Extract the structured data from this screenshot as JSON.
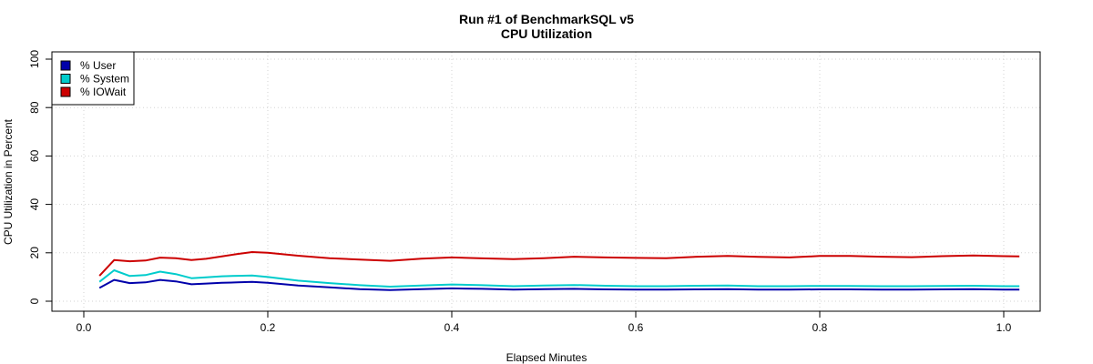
{
  "chart_data": {
    "type": "line",
    "title": "Run #1 of BenchmarkSQL v5",
    "subtitle": "CPU Utilization",
    "xlabel": "Elapsed Minutes",
    "ylabel": "CPU Utilization in Percent",
    "xlim": [
      0,
      1.02
    ],
    "ylim": [
      0,
      100
    ],
    "xticks": [
      "0.0",
      "0.2",
      "0.4",
      "0.6",
      "0.8",
      "1.0"
    ],
    "yticks": [
      "0",
      "20",
      "40",
      "60",
      "80",
      "100"
    ],
    "grid": true,
    "legend_position": "top-left",
    "x": [
      0.017,
      0.033,
      0.05,
      0.067,
      0.083,
      0.1,
      0.117,
      0.133,
      0.15,
      0.167,
      0.183,
      0.2,
      0.233,
      0.267,
      0.3,
      0.333,
      0.367,
      0.4,
      0.433,
      0.467,
      0.5,
      0.533,
      0.567,
      0.6,
      0.633,
      0.667,
      0.7,
      0.733,
      0.767,
      0.8,
      0.833,
      0.867,
      0.9,
      0.933,
      0.967,
      1.0,
      1.017
    ],
    "series": [
      {
        "name": "% User",
        "color": "#0000aa",
        "values": [
          5.5,
          8.8,
          7.5,
          7.8,
          8.8,
          8.2,
          7.0,
          7.3,
          7.6,
          7.8,
          8.0,
          7.6,
          6.5,
          5.7,
          5.0,
          4.6,
          5.0,
          5.3,
          5.1,
          4.8,
          5.0,
          5.1,
          4.9,
          4.8,
          4.8,
          4.9,
          5.0,
          4.8,
          4.8,
          4.9,
          4.9,
          4.8,
          4.8,
          4.9,
          5.0,
          4.8,
          4.8
        ]
      },
      {
        "name": "% System",
        "color": "#00cccc",
        "values": [
          8.0,
          12.8,
          10.4,
          10.8,
          12.2,
          11.2,
          9.5,
          9.9,
          10.3,
          10.5,
          10.6,
          10.0,
          8.5,
          7.5,
          6.6,
          6.0,
          6.5,
          6.9,
          6.6,
          6.2,
          6.5,
          6.7,
          6.4,
          6.2,
          6.2,
          6.4,
          6.5,
          6.2,
          6.2,
          6.3,
          6.3,
          6.2,
          6.2,
          6.3,
          6.4,
          6.2,
          6.2
        ]
      },
      {
        "name": "% IOWait",
        "color": "#cc0000",
        "values": [
          10.5,
          17.0,
          16.5,
          16.8,
          18.0,
          17.8,
          17.0,
          17.5,
          18.5,
          19.5,
          20.3,
          20.0,
          18.8,
          17.8,
          17.2,
          16.7,
          17.6,
          18.1,
          17.7,
          17.4,
          17.8,
          18.4,
          18.1,
          17.9,
          17.8,
          18.4,
          18.7,
          18.3,
          18.1,
          18.7,
          18.7,
          18.4,
          18.2,
          18.6,
          18.9,
          18.6,
          18.5
        ]
      }
    ]
  }
}
